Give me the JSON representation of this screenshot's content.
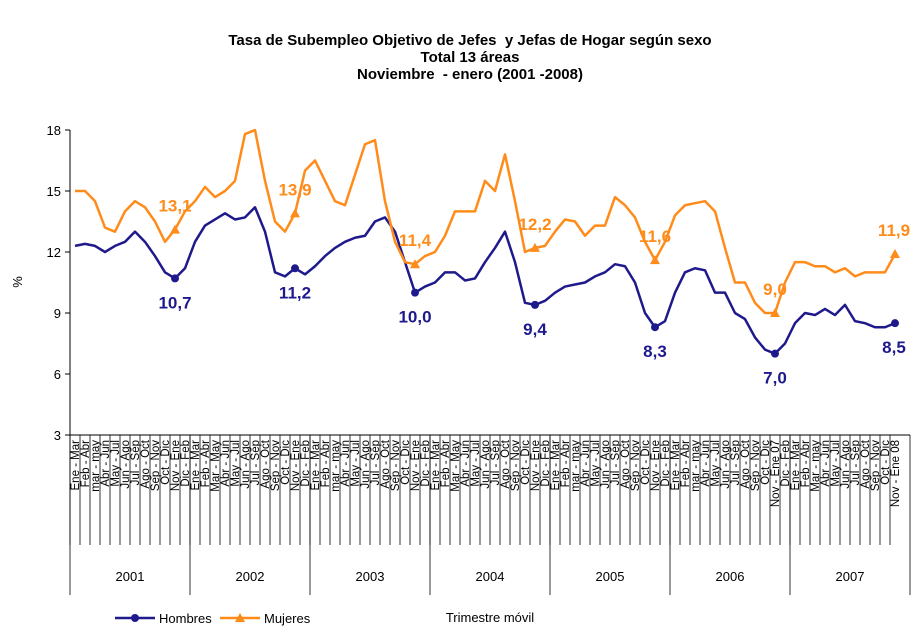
{
  "chart_data": {
    "type": "line",
    "title": "Tasa de Subempleo Objetivo de Jefes  y Jefas de Hogar según sexo",
    "subtitle": [
      "Total 13 áreas",
      "Noviembre  - enero (2001 -2008)"
    ],
    "y_label": "%",
    "x_label": "Trimestre móvil",
    "groups": [
      "2001",
      "2002",
      "2003",
      "2004",
      "2005",
      "2006",
      "2007"
    ],
    "categories": [
      "Ene - Mar",
      "Feb - Abr",
      "mar - may",
      "Abr - Jun",
      "May - Jul",
      "Jun - Ago",
      "Jul - Sep",
      "Ago - Oct",
      "Sep - Nov",
      "Oct - Dic",
      "Nov - Ene",
      "Dic - Feb",
      "Ene - Mar",
      "Feb - Abr",
      "Mar - May",
      "Abr - Jun",
      "May - Jul",
      "Jun - Ago",
      "Jul - Sep",
      "Ago - Oct",
      "Sep - Nov",
      "Oct - Dic",
      "Nov - Ene",
      "Dic - Feb",
      "Ene - Mar",
      "Feb - Abr",
      "mar - may",
      "Abr - Jun",
      "May - Jul",
      "Jun - Ago",
      "Jul - Sep",
      "Ago - Oct",
      "Sep - Nov",
      "Oct - Dic",
      "Nov - Ene",
      "Dic - Feb",
      "Ene - Mar",
      "Feb - Abr",
      "Mar - May",
      "Abr - Jun",
      "May - Jul",
      "Jun - Ago",
      "Jul - Sep",
      "Ago - Oct",
      "Sep - Nov",
      "Oct - Dic",
      "Nov - Ene",
      "Dic - Feb",
      "Ene - Mar",
      "Feb - Abr",
      "mar - may",
      "Abr - Jun",
      "May - Jul",
      "Jun - Ago",
      "Jul - Sep",
      "Ago - Oct",
      "Sep - Nov",
      "Oct - Dic",
      "Nov - Ene",
      "Dic - Feb",
      "Ene - Mar",
      "Feb - Abr",
      "mar - may",
      "Abr - Jun",
      "May - Jul",
      "Jun - Ago",
      "Jul - Sep",
      "Ago - Oct",
      "Sep - Nov",
      "Oct - Dic",
      "Nov - Ene 07",
      "Dic - Feb",
      "Ene - Mar",
      "Feb - Abr",
      "Mar - may",
      "Abr - Jun",
      "May - Jul",
      "Jun - Ago",
      "Jul - Sep",
      "Ago - Oct",
      "Sep - Nov",
      "Oct - Dic",
      "Nov - Ene 08"
    ],
    "series": [
      {
        "name": "Hombres",
        "color": "#1f1a8c",
        "marker": "circle",
        "values": [
          12.3,
          12.4,
          12.3,
          12.0,
          12.3,
          12.5,
          13.0,
          12.5,
          11.8,
          11.0,
          10.7,
          11.2,
          12.5,
          13.3,
          13.6,
          13.9,
          13.6,
          13.7,
          14.2,
          13.0,
          11.0,
          10.8,
          11.2,
          10.9,
          11.3,
          11.8,
          12.2,
          12.5,
          12.7,
          12.8,
          13.5,
          13.7,
          13.0,
          11.5,
          10.0,
          10.3,
          10.5,
          11.0,
          11.0,
          10.6,
          10.7,
          11.5,
          12.2,
          13.0,
          11.5,
          9.5,
          9.4,
          9.6,
          10.0,
          10.3,
          10.4,
          10.5,
          10.8,
          11.0,
          11.4,
          11.3,
          10.5,
          9.0,
          8.3,
          8.6,
          10.0,
          11.0,
          11.2,
          11.1,
          10.0,
          10.0,
          9.0,
          8.7,
          7.8,
          7.2,
          7.0,
          7.5,
          8.5,
          9.0,
          8.9,
          9.2,
          8.9,
          9.4,
          8.6,
          8.5,
          8.3,
          8.3,
          8.5
        ],
        "value_labels": [
          null,
          null,
          null,
          null,
          null,
          null,
          null,
          null,
          null,
          null,
          "10,7",
          null,
          null,
          null,
          null,
          null,
          null,
          null,
          null,
          null,
          null,
          null,
          "11,2",
          null,
          null,
          null,
          null,
          null,
          null,
          null,
          null,
          null,
          null,
          null,
          "10,0",
          null,
          null,
          null,
          null,
          null,
          null,
          null,
          null,
          null,
          null,
          null,
          "9,4",
          null,
          null,
          null,
          null,
          null,
          null,
          null,
          null,
          null,
          null,
          null,
          "8,3",
          null,
          null,
          null,
          null,
          null,
          null,
          null,
          null,
          null,
          null,
          null,
          "7,0",
          null,
          null,
          null,
          null,
          null,
          null,
          null,
          null,
          null,
          null,
          null,
          "8,5"
        ]
      },
      {
        "name": "Mujeres",
        "color": "#ff8c1a",
        "marker": "triangle",
        "values": [
          15.0,
          15.0,
          14.5,
          13.2,
          13.0,
          14.0,
          14.5,
          14.2,
          13.5,
          12.5,
          13.1,
          14.0,
          14.5,
          15.2,
          14.7,
          15.0,
          15.5,
          17.8,
          18.0,
          15.5,
          13.5,
          13.0,
          13.9,
          16.0,
          16.5,
          15.5,
          14.5,
          14.3,
          15.8,
          17.3,
          17.5,
          14.5,
          12.5,
          11.5,
          11.4,
          11.8,
          12.0,
          12.8,
          14.0,
          14.0,
          14.0,
          15.5,
          15.0,
          16.8,
          14.5,
          12.0,
          12.2,
          12.3,
          13.0,
          13.6,
          13.5,
          12.8,
          13.3,
          13.3,
          14.7,
          14.3,
          13.7,
          12.5,
          11.6,
          12.5,
          13.8,
          14.3,
          14.4,
          14.5,
          14.0,
          12.2,
          10.5,
          10.5,
          9.5,
          9.0,
          9.0,
          10.5,
          11.5,
          11.5,
          11.3,
          11.3,
          11.0,
          11.2,
          10.8,
          11.0,
          11.0,
          11.0,
          11.9
        ],
        "value_labels": [
          null,
          null,
          null,
          null,
          null,
          null,
          null,
          null,
          null,
          null,
          "13,1",
          null,
          null,
          null,
          null,
          null,
          null,
          null,
          null,
          null,
          null,
          null,
          "13,9",
          null,
          null,
          null,
          null,
          null,
          null,
          null,
          null,
          null,
          null,
          null,
          "11,4",
          null,
          null,
          null,
          null,
          null,
          null,
          null,
          null,
          null,
          null,
          null,
          "12,2",
          null,
          null,
          null,
          null,
          null,
          null,
          null,
          null,
          null,
          null,
          null,
          "11,6",
          null,
          null,
          null,
          null,
          null,
          null,
          null,
          null,
          null,
          null,
          null,
          "9,0",
          null,
          null,
          null,
          null,
          null,
          null,
          null,
          null,
          null,
          null,
          null,
          "11,9"
        ]
      }
    ],
    "ylim": [
      3,
      18
    ],
    "yticks": [
      3,
      6,
      9,
      12,
      15,
      18
    ],
    "grid": false,
    "legend": "bottom-left"
  }
}
